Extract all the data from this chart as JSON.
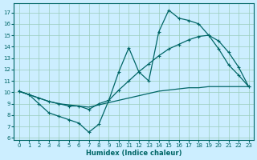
{
  "xlabel": "Humidex (Indice chaleur)",
  "bg_color": "#cceeff",
  "grid_color": "#99ccbb",
  "line_color": "#006666",
  "xlim": [
    -0.5,
    23.5
  ],
  "ylim": [
    5.8,
    17.8
  ],
  "xticks": [
    0,
    1,
    2,
    3,
    4,
    5,
    6,
    7,
    8,
    9,
    10,
    11,
    12,
    13,
    14,
    15,
    16,
    17,
    18,
    19,
    20,
    21,
    22,
    23
  ],
  "yticks": [
    6,
    7,
    8,
    9,
    10,
    11,
    12,
    13,
    14,
    15,
    16,
    17
  ],
  "line1_x": [
    0,
    1,
    2,
    3,
    4,
    5,
    6,
    7,
    8,
    9,
    10,
    11,
    12,
    13,
    14,
    15,
    16,
    17,
    18,
    19,
    20,
    21,
    22,
    23
  ],
  "line1_y": [
    10.1,
    9.8,
    9.0,
    8.2,
    7.9,
    7.6,
    7.3,
    6.5,
    7.2,
    9.3,
    11.8,
    13.9,
    11.8,
    11.0,
    15.3,
    17.2,
    16.5,
    16.3,
    16.0,
    15.0,
    13.8,
    12.4,
    11.5,
    10.5
  ],
  "line2_x": [
    0,
    1,
    2,
    3,
    4,
    5,
    6,
    7,
    8,
    9,
    10,
    11,
    12,
    13,
    14,
    15,
    16,
    17,
    18,
    19,
    20,
    21,
    22,
    23
  ],
  "line2_y": [
    10.1,
    9.8,
    9.5,
    9.2,
    9.0,
    8.8,
    8.8,
    8.5,
    9.0,
    9.3,
    10.2,
    11.0,
    11.8,
    12.5,
    13.2,
    13.8,
    14.2,
    14.6,
    14.9,
    15.0,
    14.5,
    13.5,
    12.2,
    10.5
  ],
  "line3_x": [
    0,
    1,
    2,
    3,
    4,
    5,
    6,
    7,
    8,
    9,
    10,
    11,
    12,
    13,
    14,
    15,
    16,
    17,
    18,
    19,
    20,
    21,
    22,
    23
  ],
  "line3_y": [
    10.1,
    9.8,
    9.5,
    9.2,
    9.0,
    8.9,
    8.8,
    8.7,
    8.9,
    9.1,
    9.3,
    9.5,
    9.7,
    9.9,
    10.1,
    10.2,
    10.3,
    10.4,
    10.4,
    10.5,
    10.5,
    10.5,
    10.5,
    10.5
  ]
}
